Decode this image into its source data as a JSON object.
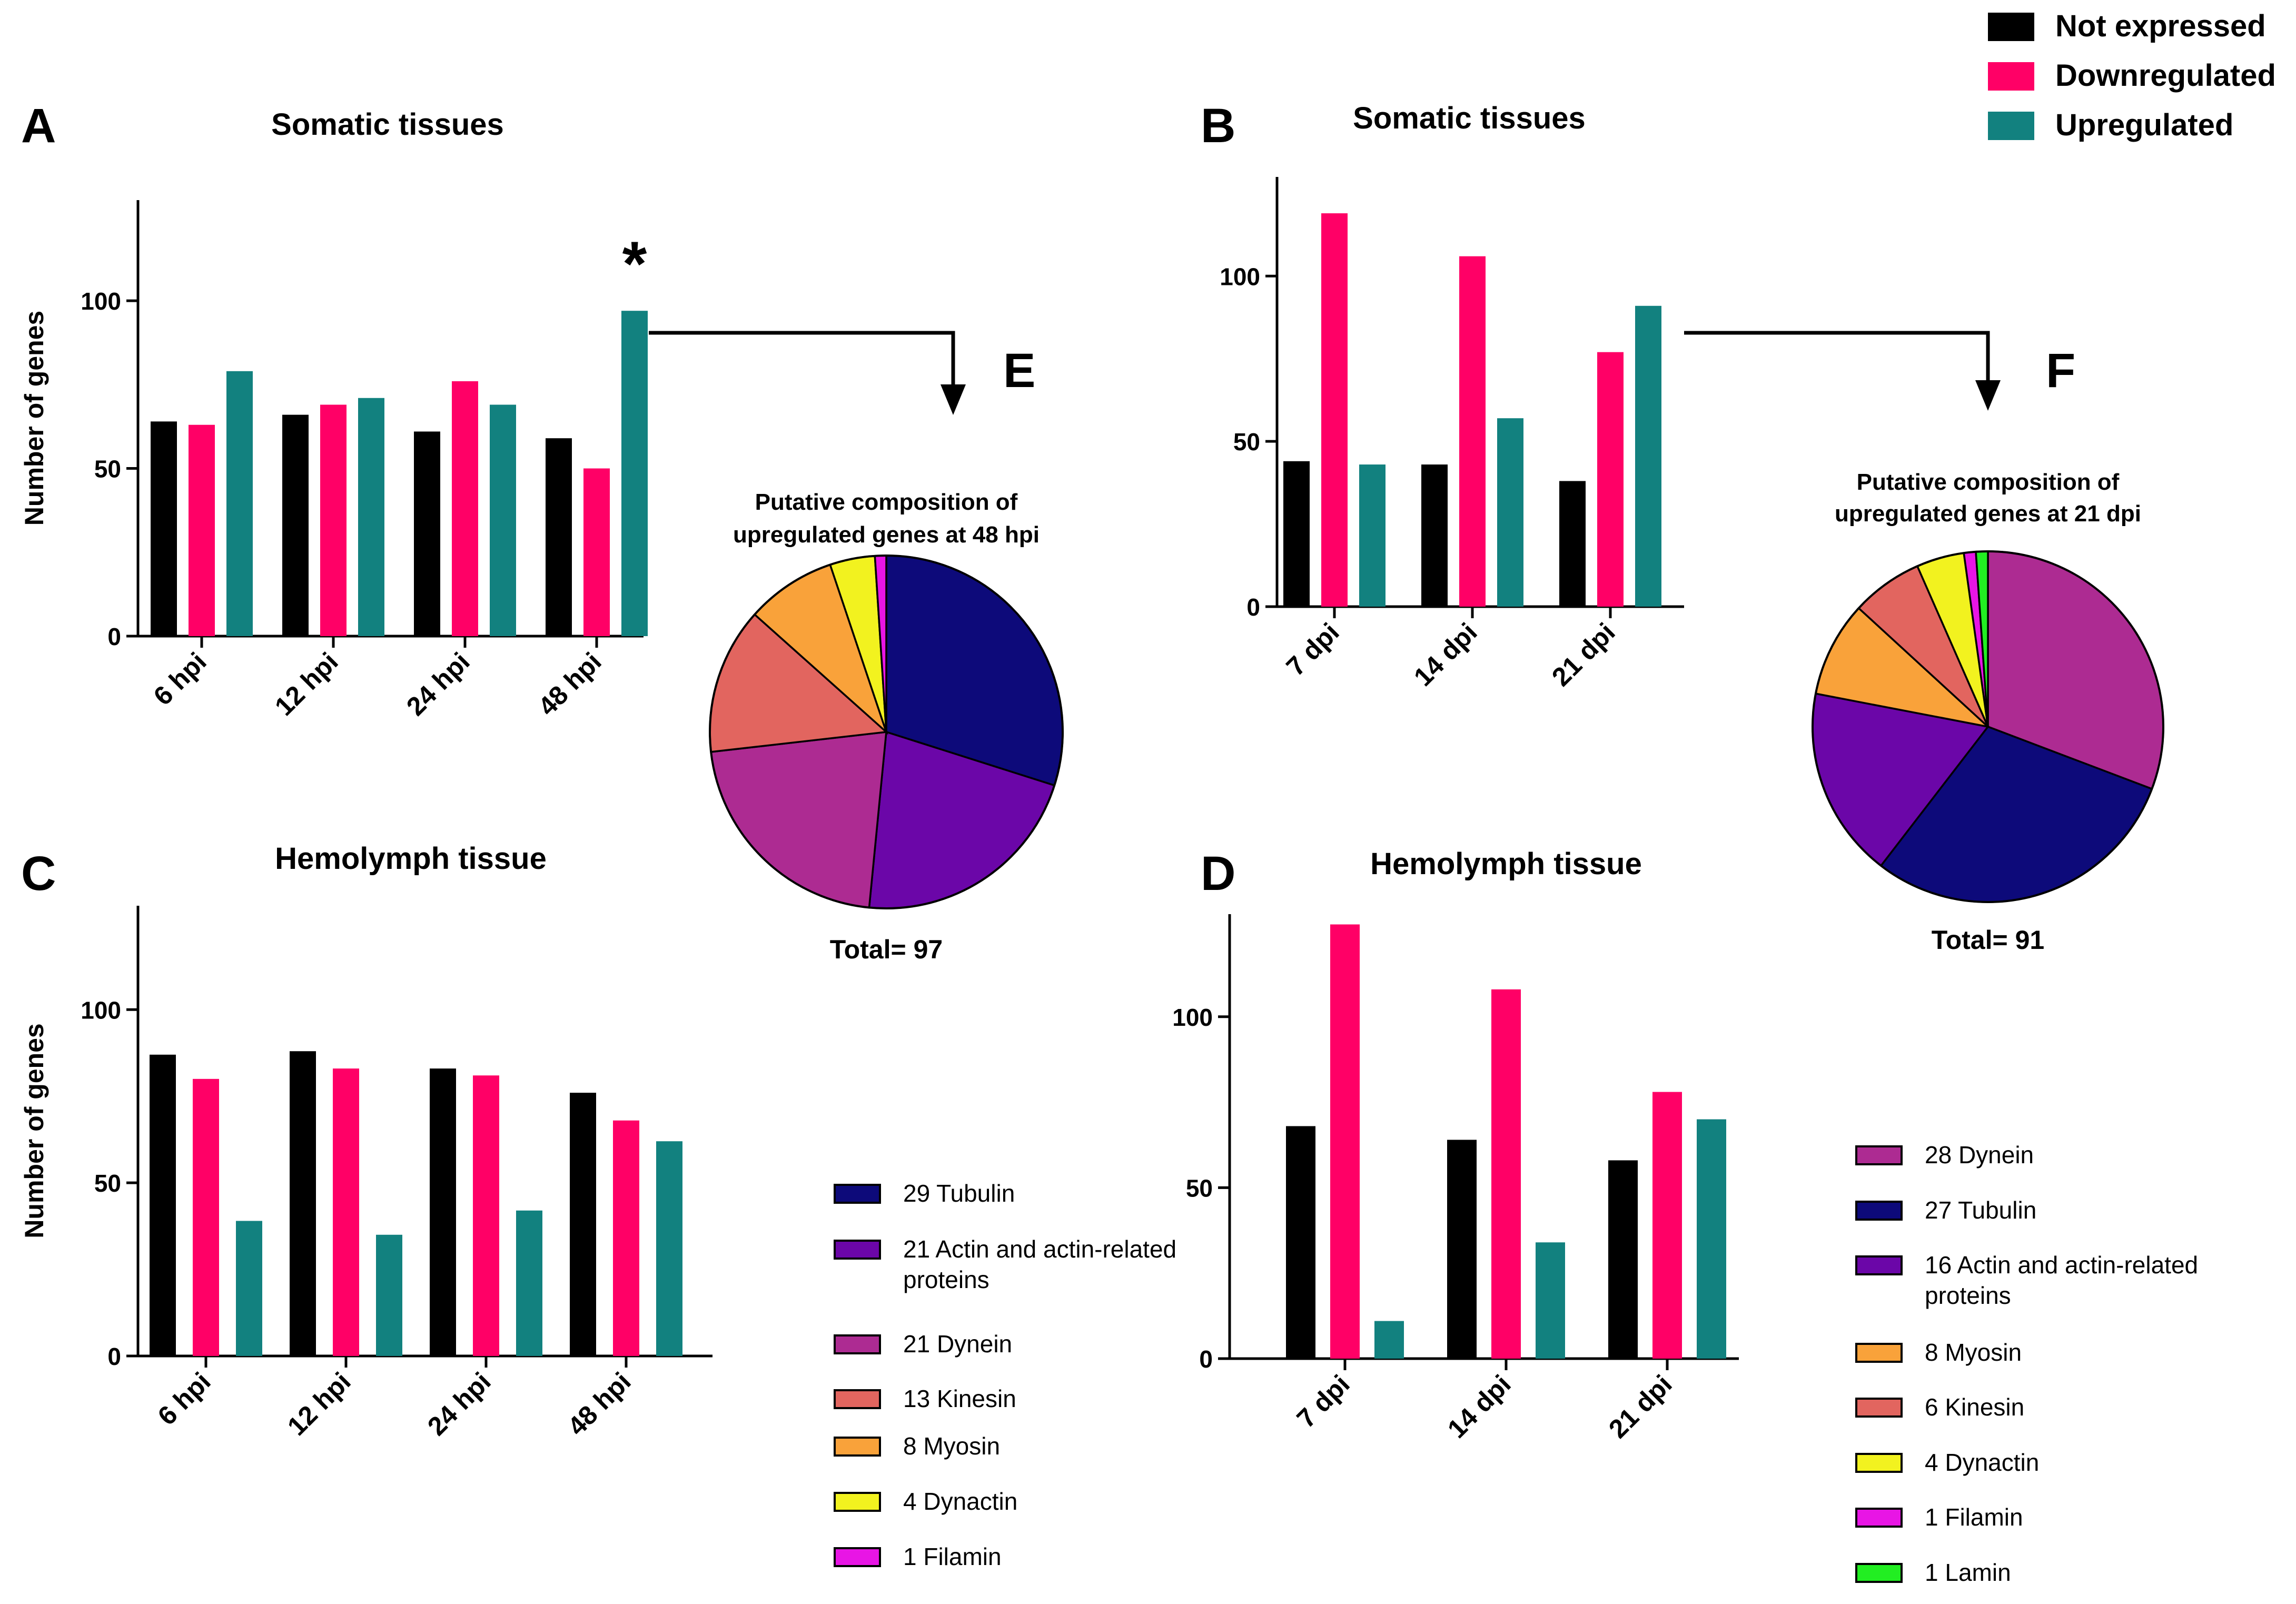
{
  "legend": {
    "items": [
      {
        "label": "Not expressed",
        "color": "#000000"
      },
      {
        "label": "Downregulated",
        "color": "#ff0066"
      },
      {
        "label": "Upregulated",
        "color": "#12817f"
      }
    ]
  },
  "chart_data": [
    {
      "id": "A",
      "type": "bar",
      "panel_letter": "A",
      "title": "Somatic tissues",
      "ylabel": "Number of genes",
      "xlabel": "",
      "ylim": [
        0,
        130
      ],
      "yticks": [
        0,
        50,
        100
      ],
      "categories": [
        "6 hpi",
        "12 hpi",
        "24 hpi",
        "48 hpi"
      ],
      "series": [
        {
          "name": "Not expressed",
          "values": [
            64,
            66,
            61,
            59
          ]
        },
        {
          "name": "Downregulated",
          "values": [
            63,
            69,
            76,
            50
          ]
        },
        {
          "name": "Upregulated",
          "values": [
            79,
            71,
            69,
            97
          ]
        }
      ],
      "annotation": "*"
    },
    {
      "id": "B",
      "type": "bar",
      "panel_letter": "B",
      "title": "Somatic tissues",
      "ylabel": "",
      "xlabel": "",
      "ylim": [
        0,
        130
      ],
      "yticks": [
        0,
        50,
        100
      ],
      "categories": [
        "7 dpi",
        "14 dpi",
        "21 dpi"
      ],
      "series": [
        {
          "name": "Not expressed",
          "values": [
            44,
            43,
            38
          ]
        },
        {
          "name": "Downregulated",
          "values": [
            119,
            106,
            77
          ]
        },
        {
          "name": "Upregulated",
          "values": [
            43,
            57,
            91
          ]
        }
      ]
    },
    {
      "id": "C",
      "type": "bar",
      "panel_letter": "C",
      "title": "Hemolymph tissue",
      "ylabel": "Number of genes",
      "xlabel": "",
      "ylim": [
        0,
        130
      ],
      "yticks": [
        0,
        50,
        100
      ],
      "categories": [
        "6 hpi",
        "12 hpi",
        "24 hpi",
        "48 hpi"
      ],
      "series": [
        {
          "name": "Not expressed",
          "values": [
            87,
            88,
            83,
            76
          ]
        },
        {
          "name": "Downregulated",
          "values": [
            80,
            83,
            81,
            68
          ]
        },
        {
          "name": "Upregulated",
          "values": [
            39,
            35,
            42,
            62
          ]
        }
      ]
    },
    {
      "id": "D",
      "type": "bar",
      "panel_letter": "D",
      "title": "Hemolymph tissue",
      "ylabel": "",
      "xlabel": "",
      "ylim": [
        0,
        130
      ],
      "yticks": [
        0,
        50,
        100
      ],
      "categories": [
        "7 dpi",
        "14 dpi",
        "21 dpi"
      ],
      "series": [
        {
          "name": "Not expressed",
          "values": [
            68,
            64,
            58
          ]
        },
        {
          "name": "Downregulated",
          "values": [
            127,
            108,
            78
          ]
        },
        {
          "name": "Upregulated",
          "values": [
            11,
            34,
            70
          ]
        }
      ]
    },
    {
      "id": "E",
      "type": "pie",
      "panel_letter": "E",
      "title": "Putative composition of upregulated genes at 48 hpi",
      "title_lines": [
        "Putative composition of",
        "upregulated genes at 48 hpi"
      ],
      "total_label": "Total= 97",
      "slices": [
        {
          "value": 29,
          "name": "Tubulin",
          "label": "29 Tubulin",
          "color": "#0d0a7a"
        },
        {
          "value": 21,
          "name": "Actin and actin-related proteins",
          "label_lines": [
            "21 Actin and actin-related",
            "proteins"
          ],
          "color": "#6b06a8"
        },
        {
          "value": 21,
          "name": "Dynein",
          "label": "21 Dynein",
          "color": "#ad2b92"
        },
        {
          "value": 13,
          "name": "Kinesin",
          "label": "13 Kinesin",
          "color": "#e2655f"
        },
        {
          "value": 8,
          "name": "Myosin",
          "label": "8 Myosin",
          "color": "#f9a23a"
        },
        {
          "value": 4,
          "name": "Dynactin",
          "label": "4 Dynactin",
          "color": "#f2f21f"
        },
        {
          "value": 1,
          "name": "Filamin",
          "label": "1 Filamin",
          "color": "#e815e5"
        }
      ]
    },
    {
      "id": "F",
      "type": "pie",
      "panel_letter": "F",
      "title": "Putative composition of upregulated genes at 21 dpi",
      "title_lines": [
        "Putative composition of",
        "upregulated genes at 21 dpi"
      ],
      "total_label": "Total= 91",
      "slices": [
        {
          "value": 28,
          "name": "Dynein",
          "label": "28 Dynein",
          "color": "#ad2b92"
        },
        {
          "value": 27,
          "name": "Tubulin",
          "label": "27 Tubulin",
          "color": "#0d0a7a"
        },
        {
          "value": 16,
          "name": "Actin and actin-related proteins",
          "label_lines": [
            "16 Actin and actin-related",
            "proteins"
          ],
          "color": "#6b06a8"
        },
        {
          "value": 8,
          "name": "Myosin",
          "label": "8 Myosin",
          "color": "#f9a23a"
        },
        {
          "value": 6,
          "name": "Kinesin",
          "label": "6 Kinesin",
          "color": "#e2655f"
        },
        {
          "value": 4,
          "name": "Dynactin",
          "label": "4 Dynactin",
          "color": "#f2f21f"
        },
        {
          "value": 1,
          "name": "Filamin",
          "label": "1 Filamin",
          "color": "#e815e5"
        },
        {
          "value": 1,
          "name": "Lamin",
          "label": "1 Lamin",
          "color": "#22ee22"
        }
      ]
    }
  ]
}
